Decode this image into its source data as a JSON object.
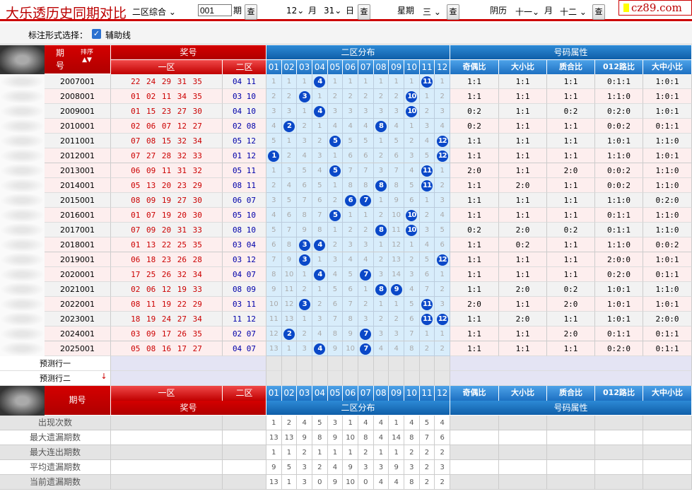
{
  "header": {
    "title": "大乐透历史同期对比",
    "mode_select": "二区综合",
    "issue_input": "001",
    "issue_label": "期",
    "query": "查",
    "month": "12",
    "month_label": "月",
    "day": "31",
    "day_label": "日",
    "weekday_label": "星期",
    "weekday": "三",
    "lunar_label": "阴历",
    "lunar_month": "十一",
    "lunar_month_label": "月",
    "lunar_day": "十二",
    "logo": "cz89.com"
  },
  "options": {
    "label": "标注形式选择：",
    "aux_line_label": "辅助线",
    "aux_line_checked": true
  },
  "table_header": {
    "issue": "期",
    "issue2": "号",
    "sort": "排序",
    "prize": "奖号",
    "zone1": "一区",
    "zone2": "二区",
    "dist": "二区分布",
    "attr": "号码属性",
    "dist_cols": [
      "01",
      "02",
      "03",
      "04",
      "05",
      "06",
      "07",
      "08",
      "09",
      "10",
      "11",
      "12"
    ],
    "attr_cols": [
      "奇偶比",
      "大小比",
      "质合比",
      "012路比",
      "大中小比"
    ],
    "issue_full": "期号"
  },
  "rows": [
    {
      "issue": "2007001",
      "z1": "22 24 29 31 35",
      "z2": "04 11",
      "dist": [
        1,
        1,
        1,
        4,
        1,
        1,
        1,
        1,
        1,
        1,
        11,
        1
      ],
      "attr": [
        "1:1",
        "1:1",
        "1:1",
        "0:1:1",
        "1:0:1"
      ]
    },
    {
      "issue": "2008001",
      "z1": "01 02 11 34 35",
      "z2": "03 10",
      "dist": [
        2,
        2,
        3,
        1,
        2,
        2,
        2,
        2,
        2,
        10,
        1,
        2
      ],
      "attr": [
        "1:1",
        "1:1",
        "1:1",
        "1:1:0",
        "1:0:1"
      ]
    },
    {
      "issue": "2009001",
      "z1": "01 15 23 27 30",
      "z2": "04 10",
      "dist": [
        3,
        3,
        1,
        4,
        3,
        3,
        3,
        3,
        3,
        10,
        2,
        3
      ],
      "attr": [
        "0:2",
        "1:1",
        "0:2",
        "0:2:0",
        "1:0:1"
      ]
    },
    {
      "issue": "2010001",
      "z1": "02 06 07 12 27",
      "z2": "02 08",
      "dist": [
        4,
        2,
        2,
        1,
        4,
        4,
        4,
        8,
        4,
        1,
        3,
        4
      ],
      "attr": [
        "0:2",
        "1:1",
        "1:1",
        "0:0:2",
        "0:1:1"
      ]
    },
    {
      "issue": "2011001",
      "z1": "07 08 15 32 34",
      "z2": "05 12",
      "dist": [
        5,
        1,
        3,
        2,
        5,
        5,
        5,
        1,
        5,
        2,
        4,
        12
      ],
      "attr": [
        "1:1",
        "1:1",
        "1:1",
        "1:0:1",
        "1:1:0"
      ]
    },
    {
      "issue": "2012001",
      "z1": "07 27 28 32 33",
      "z2": "01 12",
      "dist": [
        1,
        2,
        4,
        3,
        1,
        6,
        6,
        2,
        6,
        3,
        5,
        12
      ],
      "attr": [
        "1:1",
        "1:1",
        "1:1",
        "1:1:0",
        "1:0:1"
      ]
    },
    {
      "issue": "2013001",
      "z1": "06 09 11 31 32",
      "z2": "05 11",
      "dist": [
        1,
        3,
        5,
        4,
        5,
        7,
        7,
        3,
        7,
        4,
        11,
        1
      ],
      "attr": [
        "2:0",
        "1:1",
        "2:0",
        "0:0:2",
        "1:1:0"
      ]
    },
    {
      "issue": "2014001",
      "z1": "05 13 20 23 29",
      "z2": "08 11",
      "dist": [
        2,
        4,
        6,
        5,
        1,
        8,
        8,
        8,
        8,
        5,
        11,
        2
      ],
      "attr": [
        "1:1",
        "2:0",
        "1:1",
        "0:0:2",
        "1:1:0"
      ]
    },
    {
      "issue": "2015001",
      "z1": "08 09 19 27 30",
      "z2": "06 07",
      "dist": [
        3,
        5,
        7,
        6,
        2,
        6,
        7,
        1,
        9,
        6,
        1,
        3
      ],
      "attr": [
        "1:1",
        "1:1",
        "1:1",
        "1:1:0",
        "0:2:0"
      ]
    },
    {
      "issue": "2016001",
      "z1": "01 07 19 20 30",
      "z2": "05 10",
      "dist": [
        4,
        6,
        8,
        7,
        5,
        1,
        1,
        2,
        10,
        10,
        2,
        4
      ],
      "attr": [
        "1:1",
        "1:1",
        "1:1",
        "0:1:1",
        "1:1:0"
      ]
    },
    {
      "issue": "2017001",
      "z1": "07 09 20 31 33",
      "z2": "08 10",
      "dist": [
        5,
        7,
        9,
        8,
        1,
        2,
        2,
        8,
        11,
        10,
        3,
        5
      ],
      "attr": [
        "0:2",
        "2:0",
        "0:2",
        "0:1:1",
        "1:1:0"
      ]
    },
    {
      "issue": "2018001",
      "z1": "01 13 22 25 35",
      "z2": "03 04",
      "dist": [
        6,
        8,
        3,
        4,
        2,
        3,
        3,
        1,
        12,
        1,
        4,
        6
      ],
      "attr": [
        "1:1",
        "0:2",
        "1:1",
        "1:1:0",
        "0:0:2"
      ]
    },
    {
      "issue": "2019001",
      "z1": "06 18 23 26 28",
      "z2": "03 12",
      "dist": [
        7,
        9,
        3,
        1,
        3,
        4,
        4,
        2,
        13,
        2,
        5,
        12
      ],
      "attr": [
        "1:1",
        "1:1",
        "1:1",
        "2:0:0",
        "1:0:1"
      ]
    },
    {
      "issue": "2020001",
      "z1": "17 25 26 32 34",
      "z2": "04 07",
      "dist": [
        8,
        10,
        1,
        4,
        4,
        5,
        7,
        3,
        14,
        3,
        6,
        1
      ],
      "attr": [
        "1:1",
        "1:1",
        "1:1",
        "0:2:0",
        "0:1:1"
      ]
    },
    {
      "issue": "2021001",
      "z1": "02 06 12 19 33",
      "z2": "08 09",
      "dist": [
        9,
        11,
        2,
        1,
        5,
        6,
        1,
        8,
        9,
        4,
        7,
        2
      ],
      "attr": [
        "1:1",
        "2:0",
        "0:2",
        "1:0:1",
        "1:1:0"
      ]
    },
    {
      "issue": "2022001",
      "z1": "08 11 19 22 29",
      "z2": "03 11",
      "dist": [
        10,
        12,
        3,
        2,
        6,
        7,
        2,
        1,
        1,
        5,
        11,
        3
      ],
      "attr": [
        "2:0",
        "1:1",
        "2:0",
        "1:0:1",
        "1:0:1"
      ]
    },
    {
      "issue": "2023001",
      "z1": "18 19 24 27 34",
      "z2": "11 12",
      "dist": [
        11,
        13,
        1,
        3,
        7,
        8,
        3,
        2,
        2,
        6,
        11,
        12
      ],
      "attr": [
        "1:1",
        "2:0",
        "1:1",
        "1:0:1",
        "2:0:0"
      ]
    },
    {
      "issue": "2024001",
      "z1": "03 09 17 26 35",
      "z2": "02 07",
      "dist": [
        12,
        2,
        2,
        4,
        8,
        9,
        7,
        3,
        3,
        7,
        1,
        1
      ],
      "attr": [
        "1:1",
        "1:1",
        "2:0",
        "0:1:1",
        "0:1:1"
      ]
    },
    {
      "issue": "2025001",
      "z1": "05 08 16 17 27",
      "z2": "04 07",
      "dist": [
        13,
        1,
        3,
        4,
        9,
        10,
        7,
        4,
        4,
        8,
        2,
        2
      ],
      "attr": [
        "1:1",
        "1:1",
        "1:1",
        "0:2:0",
        "0:1:1"
      ]
    }
  ],
  "predict": [
    "预测行一",
    "预测行二"
  ],
  "stats": [
    {
      "label": "出现次数",
      "values": [
        1,
        2,
        4,
        5,
        3,
        1,
        4,
        4,
        1,
        4,
        5,
        4
      ]
    },
    {
      "label": "最大遗漏期数",
      "values": [
        13,
        13,
        9,
        8,
        9,
        10,
        8,
        4,
        14,
        8,
        7,
        6
      ]
    },
    {
      "label": "最大连出期数",
      "values": [
        1,
        1,
        2,
        1,
        1,
        1,
        2,
        1,
        1,
        2,
        2,
        2
      ]
    },
    {
      "label": "平均遗漏期数",
      "values": [
        9,
        5,
        3,
        2,
        4,
        9,
        3,
        3,
        9,
        3,
        2,
        3
      ]
    },
    {
      "label": "当前遗漏期数",
      "values": [
        13,
        1,
        3,
        0,
        9,
        10,
        0,
        4,
        4,
        8,
        2,
        2
      ]
    }
  ],
  "colors": {
    "red_header": "#c00000",
    "blue_header": "#1d70c2",
    "ball": "#0a48c8",
    "zone1_text": "#cc0000",
    "zone2_text": "#0000aa",
    "dist_bg": "#d8edfb"
  }
}
